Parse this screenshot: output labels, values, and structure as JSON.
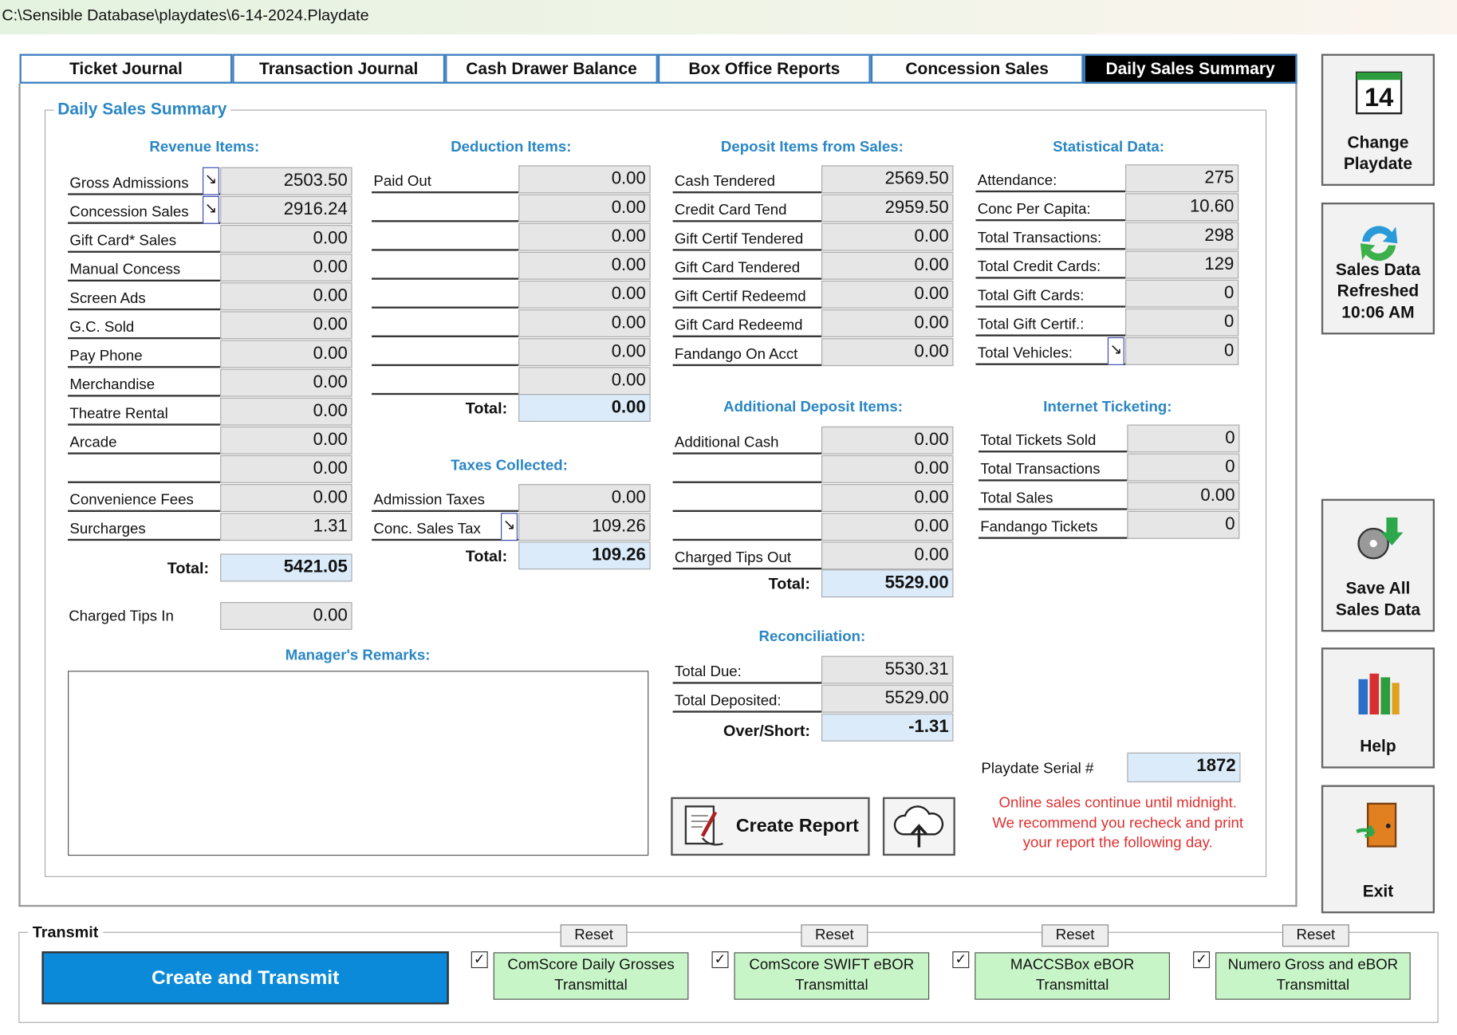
{
  "window_title": "C:\\Sensible Database\\playdates\\6-14-2024.Playdate",
  "tabs": {
    "items": [
      "Ticket Journal",
      "Transaction Journal",
      "Cash Drawer Balance",
      "Box Office Reports",
      "Concession Sales",
      "Daily Sales Summary"
    ],
    "active": 5
  },
  "panel_title": "Daily Sales Summary",
  "revenue": {
    "heading": "Revenue Items:",
    "rows": [
      {
        "label": "Gross Admissions",
        "value": "2503.50",
        "drilldown": true
      },
      {
        "label": "Concession Sales",
        "value": "2916.24",
        "drilldown": true
      },
      {
        "label": "Gift Card* Sales",
        "value": "0.00"
      },
      {
        "label": "Manual Concess",
        "value": "0.00"
      },
      {
        "label": "Screen Ads",
        "value": "0.00"
      },
      {
        "label": "G.C. Sold",
        "value": "0.00"
      },
      {
        "label": "Pay Phone",
        "value": "0.00"
      },
      {
        "label": "Merchandise",
        "value": "0.00"
      },
      {
        "label": "Theatre Rental",
        "value": "0.00"
      },
      {
        "label": "Arcade",
        "value": "0.00"
      },
      {
        "label": null,
        "value": "0.00"
      },
      {
        "label": "Convenience Fees",
        "value": "0.00"
      },
      {
        "label": "Surcharges",
        "value": "1.31"
      }
    ],
    "total_label": "Total:",
    "total": "5421.05",
    "tips": {
      "label": "Charged Tips In",
      "value": "0.00"
    }
  },
  "deductions": {
    "heading": "Deduction Items:",
    "rows": [
      {
        "label": "Paid Out",
        "value": "0.00"
      },
      {
        "label": null,
        "value": "0.00"
      },
      {
        "label": null,
        "value": "0.00"
      },
      {
        "label": null,
        "value": "0.00"
      },
      {
        "label": null,
        "value": "0.00"
      },
      {
        "label": null,
        "value": "0.00"
      },
      {
        "label": null,
        "value": "0.00"
      },
      {
        "label": null,
        "value": "0.00"
      }
    ],
    "total_label": "Total:",
    "total": "0.00"
  },
  "taxes": {
    "heading": "Taxes Collected:",
    "rows": [
      {
        "label": "Admission Taxes",
        "value": "0.00"
      },
      {
        "label": "Conc. Sales Tax",
        "value": "109.26",
        "drilldown": true
      }
    ],
    "total_label": "Total:",
    "total": "109.26"
  },
  "deposits": {
    "heading": "Deposit Items from Sales:",
    "rows": [
      {
        "label": "Cash Tendered",
        "value": "2569.50"
      },
      {
        "label": "Credit Card Tend",
        "value": "2959.50"
      },
      {
        "label": "Gift Certif Tendered",
        "value": "0.00"
      },
      {
        "label": "Gift Card Tendered",
        "value": "0.00"
      },
      {
        "label": "Gift Certif Redeemd",
        "value": "0.00"
      },
      {
        "label": "Gift Card Redeemd",
        "value": "0.00"
      },
      {
        "label": "Fandango On Acct",
        "value": "0.00"
      }
    ]
  },
  "additional_deposits": {
    "heading": "Additional Deposit Items:",
    "rows": [
      {
        "label": "Additional Cash",
        "value": "0.00"
      },
      {
        "label": null,
        "value": "0.00"
      },
      {
        "label": null,
        "value": "0.00"
      },
      {
        "label": null,
        "value": "0.00"
      },
      {
        "label": "Charged Tips Out",
        "value": "0.00"
      }
    ],
    "total_label": "Total:",
    "total": "5529.00"
  },
  "reconciliation": {
    "heading": "Reconciliation:",
    "rows": [
      {
        "label": "Total Due:",
        "value": "5530.31"
      },
      {
        "label": "Total Deposited:",
        "value": "5529.00"
      },
      {
        "label": "Over/Short:",
        "value": "-1.31",
        "highlight": true
      }
    ]
  },
  "statistics": {
    "heading": "Statistical Data:",
    "rows": [
      {
        "label": "Attendance:",
        "value": "275"
      },
      {
        "label": "Conc Per Capita:",
        "value": "10.60"
      },
      {
        "label": "Total Transactions:",
        "value": "298"
      },
      {
        "label": "Total Credit Cards:",
        "value": "129"
      },
      {
        "label": "Total Gift Cards:",
        "value": "0"
      },
      {
        "label": "Total Gift Certif.:",
        "value": "0"
      },
      {
        "label": "Total Vehicles:",
        "value": "0",
        "drilldown": true
      }
    ]
  },
  "internet_ticketing": {
    "heading": "Internet Ticketing:",
    "rows": [
      {
        "label": "Total Tickets Sold",
        "value": "0"
      },
      {
        "label": "Total Transactions",
        "value": "0"
      },
      {
        "label": "Total Sales",
        "value": "0.00"
      },
      {
        "label": "Fandango Tickets",
        "value": "0"
      }
    ]
  },
  "playdate_serial": {
    "label": "Playdate Serial #",
    "value": "1872"
  },
  "remarks": {
    "heading": "Manager's Remarks:"
  },
  "create_report": "Create Report",
  "notice": [
    "Online sales continue until midnight.",
    "We recommend you recheck and print",
    "your report the following day."
  ],
  "side_buttons": [
    {
      "icon_text": "14",
      "label": [
        "Change",
        "Playdate"
      ]
    },
    {
      "label": [
        "Sales Data",
        "Refreshed",
        "10:06 AM"
      ]
    },
    {
      "label": [
        "Save All",
        "Sales Data"
      ]
    },
    {
      "label": [
        "Help"
      ]
    },
    {
      "label": [
        "Exit"
      ]
    }
  ],
  "transmit": {
    "title": "Transmit",
    "button": "Create and Transmit",
    "items": [
      {
        "reset": "Reset",
        "checked": true,
        "label": [
          "ComScore Daily Grosses",
          "Transmittal"
        ]
      },
      {
        "reset": "Reset",
        "checked": true,
        "label": [
          "ComScore SWIFT eBOR",
          "Transmittal"
        ]
      },
      {
        "reset": "Reset",
        "checked": true,
        "label": [
          "MACCSBox eBOR",
          "Transmittal"
        ]
      },
      {
        "reset": "Reset",
        "checked": true,
        "label": [
          "Numero Gross and eBOR",
          "Transmittal"
        ]
      }
    ]
  }
}
